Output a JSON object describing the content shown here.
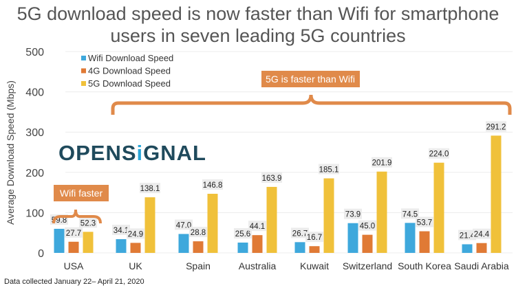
{
  "title": "5G download speed is now faster than Wifi for smartphone users in seven leading 5G countries",
  "footnote": "Data collected January 22– April 21, 2020",
  "logo": "OPENSIGNAL",
  "chart_data": {
    "type": "bar",
    "title": "5G download speed is now faster than Wifi for smartphone users in seven leading 5G countries",
    "ylabel": "Average Download Speed (Mbps)",
    "xlabel": "",
    "ylim": [
      0,
      500
    ],
    "yticks": [
      0,
      100,
      200,
      300,
      400,
      500
    ],
    "grid": true,
    "legend": "top-left",
    "categories": [
      "USA",
      "UK",
      "Spain",
      "Australia",
      "Kuwait",
      "Switzerland",
      "South Korea",
      "Saudi Arabia"
    ],
    "series": [
      {
        "name": "Wifi Download Speed",
        "color": "#3ea8dc",
        "values": [
          59.8,
          34.1,
          47.0,
          25.6,
          26.7,
          73.9,
          74.5,
          21.4
        ]
      },
      {
        "name": "4G Download Speed",
        "color": "#e07a35",
        "values": [
          27.7,
          24.9,
          28.8,
          44.1,
          16.7,
          45.0,
          53.7,
          24.4
        ]
      },
      {
        "name": "5G Download Speed",
        "color": "#f0c13a",
        "values": [
          52.3,
          138.1,
          146.8,
          163.9,
          185.1,
          201.9,
          224.0,
          291.2
        ]
      }
    ],
    "annotations": [
      {
        "text": "Wifi faster",
        "color": "#e08a4a"
      },
      {
        "text": "5G is faster than Wifi",
        "color": "#e08a4a"
      }
    ]
  }
}
